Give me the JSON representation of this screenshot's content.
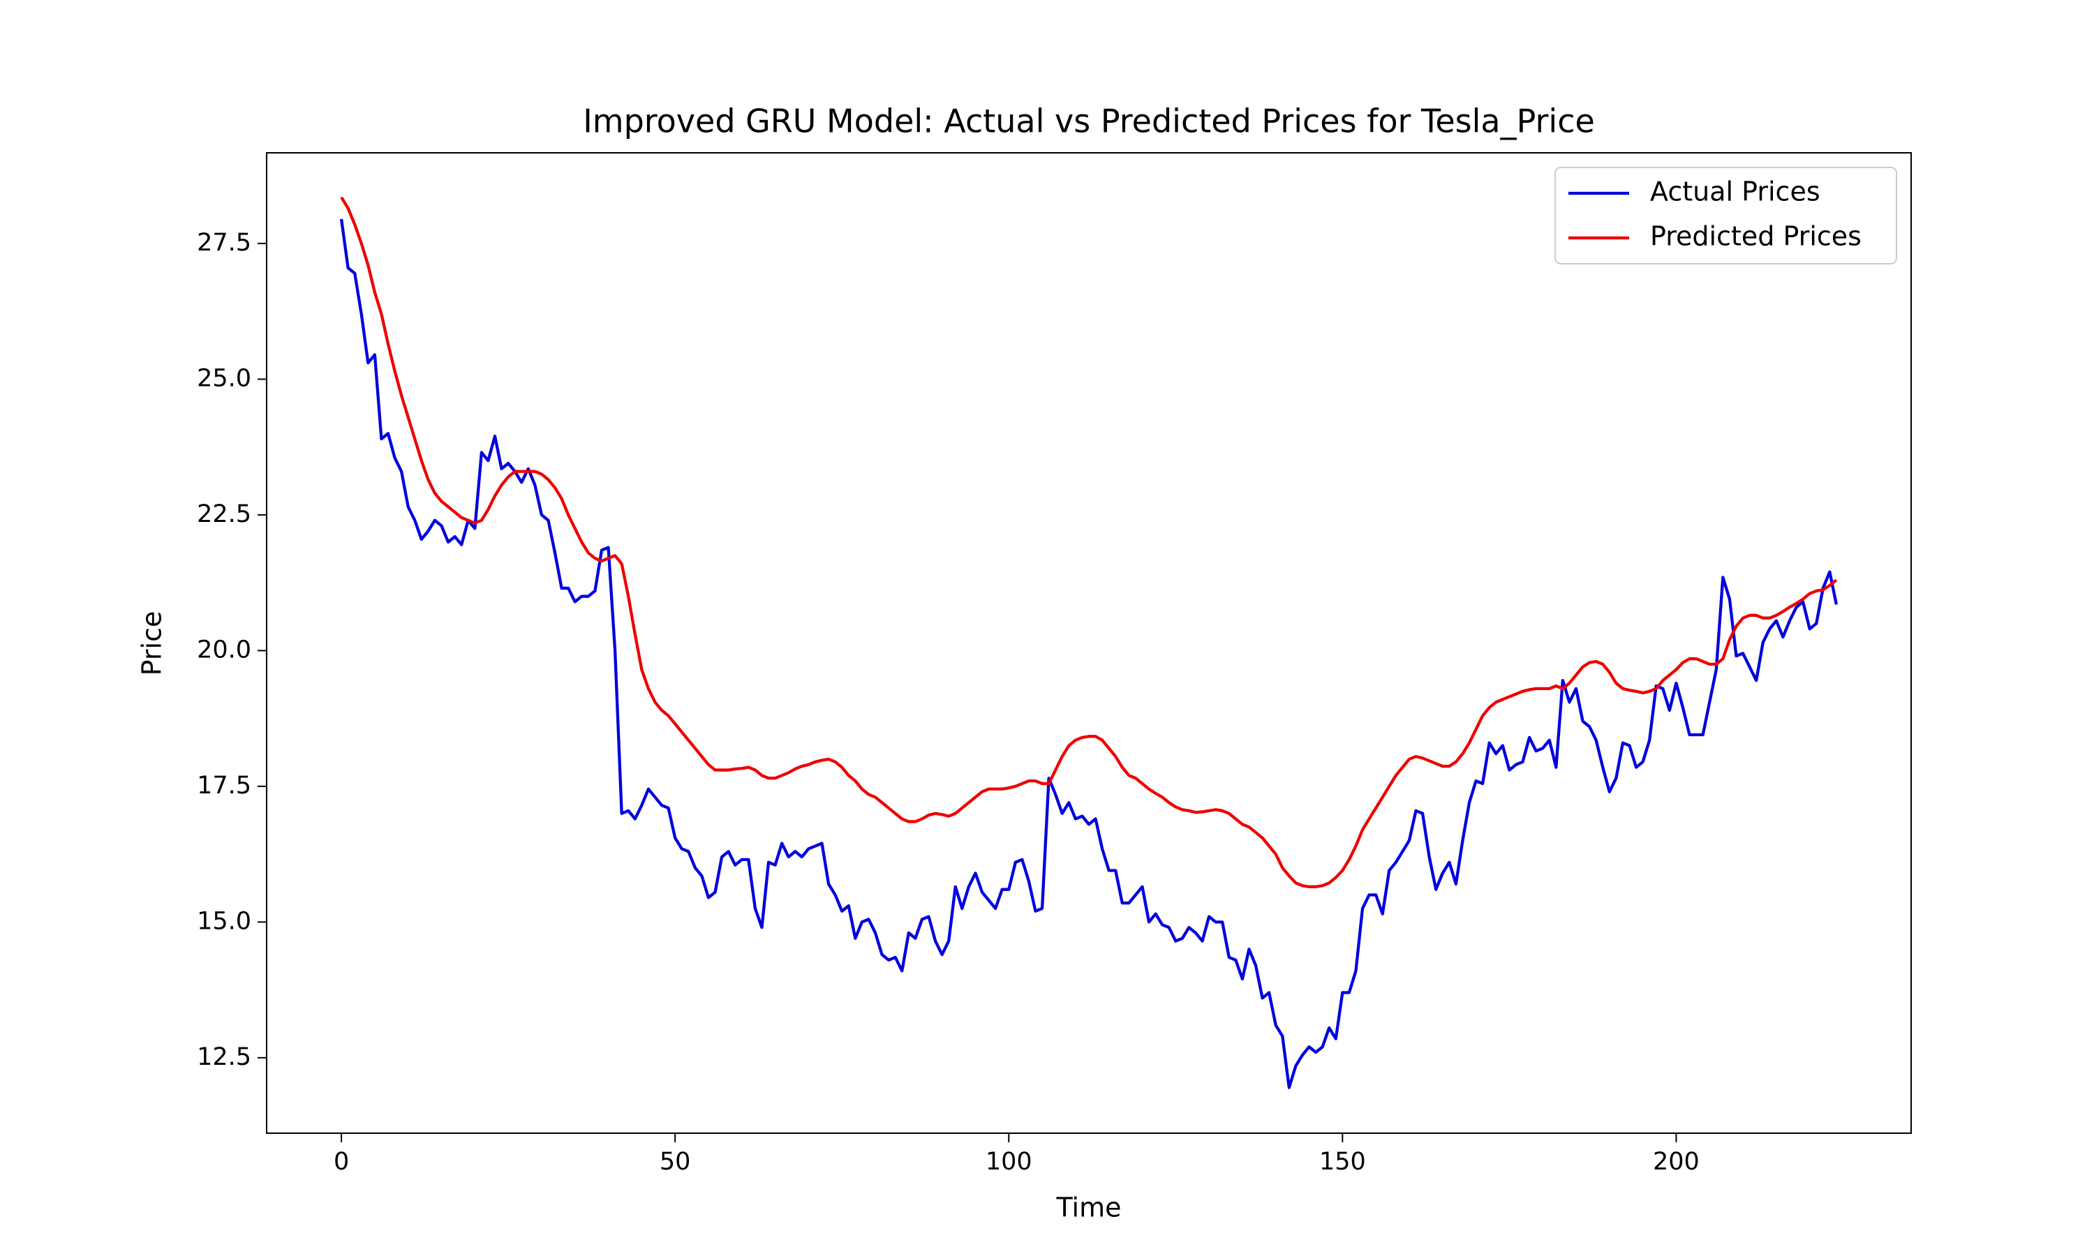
{
  "chart_data": {
    "type": "line",
    "title": "Improved GRU Model: Actual vs Predicted Prices for Tesla_Price",
    "x_label": "Time",
    "y_label": "Price",
    "x": [
      0,
      1,
      2,
      3,
      4,
      5,
      6,
      7,
      8,
      9,
      10,
      11,
      12,
      13,
      14,
      15,
      16,
      17,
      18,
      19,
      20,
      21,
      22,
      23,
      24,
      25,
      26,
      27,
      28,
      29,
      30,
      31,
      32,
      33,
      34,
      35,
      36,
      37,
      38,
      39,
      40,
      41,
      42,
      43,
      44,
      45,
      46,
      47,
      48,
      49,
      50,
      51,
      52,
      53,
      54,
      55,
      56,
      57,
      58,
      59,
      60,
      61,
      62,
      63,
      64,
      65,
      66,
      67,
      68,
      69,
      70,
      71,
      72,
      73,
      74,
      75,
      76,
      77,
      78,
      79,
      80,
      81,
      82,
      83,
      84,
      85,
      86,
      87,
      88,
      89,
      90,
      91,
      92,
      93,
      94,
      95,
      96,
      97,
      98,
      99,
      100,
      101,
      102,
      103,
      104,
      105,
      106,
      107,
      108,
      109,
      110,
      111,
      112,
      113,
      114,
      115,
      116,
      117,
      118,
      119,
      120,
      121,
      122,
      123,
      124,
      125,
      126,
      127,
      128,
      129,
      130,
      131,
      132,
      133,
      134,
      135,
      136,
      137,
      138,
      139,
      140,
      141,
      142,
      143,
      144,
      145,
      146,
      147,
      148,
      149,
      150,
      151,
      152,
      153,
      154,
      155,
      156,
      157,
      158,
      159,
      160,
      161,
      162,
      163,
      164,
      165,
      166,
      167,
      168,
      169,
      170,
      171,
      172,
      173,
      174,
      175,
      176,
      177,
      178,
      179,
      180,
      181,
      182,
      183,
      184,
      185,
      186,
      187,
      188,
      189,
      190,
      191,
      192,
      193,
      194,
      195,
      196,
      197,
      198,
      199,
      200,
      201,
      202,
      203,
      204,
      205,
      206,
      207,
      208,
      209,
      210,
      211,
      212,
      213,
      214,
      215,
      216,
      217,
      218,
      219,
      220,
      221,
      222,
      223,
      224
    ],
    "series": [
      {
        "name": "Actual Prices",
        "color": "#0000dd",
        "values": [
          27.95,
          27.05,
          26.95,
          26.2,
          25.3,
          25.45,
          23.9,
          24.0,
          23.55,
          23.3,
          22.65,
          22.4,
          22.05,
          22.2,
          22.4,
          22.3,
          22.0,
          22.1,
          21.95,
          22.4,
          22.25,
          23.65,
          23.5,
          23.95,
          23.35,
          23.45,
          23.3,
          23.1,
          23.35,
          23.05,
          22.5,
          22.4,
          21.8,
          21.15,
          21.15,
          20.9,
          21.0,
          21.0,
          21.1,
          21.85,
          21.9,
          20.0,
          17.0,
          17.05,
          16.9,
          17.15,
          17.45,
          17.3,
          17.15,
          17.1,
          16.55,
          16.35,
          16.3,
          16.0,
          15.85,
          15.45,
          15.55,
          16.2,
          16.3,
          16.05,
          16.15,
          16.15,
          15.25,
          14.9,
          16.1,
          16.05,
          16.45,
          16.2,
          16.3,
          16.2,
          16.35,
          16.4,
          16.45,
          15.7,
          15.5,
          15.2,
          15.3,
          14.7,
          15.0,
          15.05,
          14.8,
          14.4,
          14.3,
          14.35,
          14.1,
          14.8,
          14.7,
          15.05,
          15.1,
          14.65,
          14.4,
          14.65,
          15.65,
          15.25,
          15.65,
          15.9,
          15.55,
          15.4,
          15.25,
          15.6,
          15.6,
          16.1,
          16.15,
          15.75,
          15.2,
          15.25,
          17.65,
          17.35,
          17.0,
          17.2,
          16.9,
          16.95,
          16.8,
          16.9,
          16.35,
          15.95,
          15.95,
          15.35,
          15.35,
          15.5,
          15.65,
          15.0,
          15.15,
          14.95,
          14.9,
          14.65,
          14.7,
          14.9,
          14.8,
          14.65,
          15.1,
          15.0,
          15.0,
          14.35,
          14.3,
          13.95,
          14.5,
          14.2,
          13.6,
          13.7,
          13.1,
          12.9,
          11.95,
          12.35,
          12.55,
          12.7,
          12.6,
          12.7,
          13.05,
          12.85,
          13.7,
          13.7,
          14.1,
          15.25,
          15.5,
          15.5,
          15.15,
          15.95,
          16.1,
          16.3,
          16.5,
          17.05,
          17.0,
          16.2,
          15.6,
          15.9,
          16.1,
          15.7,
          16.5,
          17.2,
          17.6,
          17.55,
          18.3,
          18.1,
          18.25,
          17.8,
          17.9,
          17.95,
          18.4,
          18.15,
          18.2,
          18.35,
          17.85,
          19.45,
          19.05,
          19.3,
          18.7,
          18.6,
          18.35,
          17.85,
          17.4,
          17.65,
          18.3,
          18.25,
          17.85,
          17.95,
          18.35,
          19.35,
          19.3,
          18.9,
          19.4,
          18.95,
          18.45,
          18.45,
          18.45,
          19.05,
          19.65,
          21.35,
          20.95,
          19.9,
          19.95,
          19.7,
          19.45,
          20.15,
          20.4,
          20.55,
          20.25,
          20.55,
          20.8,
          20.9,
          20.4,
          20.5,
          21.15,
          21.45,
          20.85
        ]
      },
      {
        "name": "Predicted Prices",
        "color": "#ee0000",
        "values": [
          28.35,
          28.15,
          27.85,
          27.5,
          27.1,
          26.6,
          26.2,
          25.65,
          25.15,
          24.7,
          24.3,
          23.9,
          23.5,
          23.15,
          22.9,
          22.75,
          22.65,
          22.55,
          22.45,
          22.4,
          22.35,
          22.4,
          22.6,
          22.85,
          23.05,
          23.2,
          23.3,
          23.3,
          23.3,
          23.3,
          23.25,
          23.15,
          23.0,
          22.8,
          22.5,
          22.25,
          22.0,
          21.8,
          21.7,
          21.65,
          21.7,
          21.75,
          21.6,
          21.0,
          20.3,
          19.65,
          19.3,
          19.05,
          18.9,
          18.8,
          18.65,
          18.5,
          18.35,
          18.2,
          18.05,
          17.9,
          17.8,
          17.8,
          17.8,
          17.82,
          17.83,
          17.85,
          17.8,
          17.7,
          17.65,
          17.65,
          17.7,
          17.75,
          17.82,
          17.87,
          17.9,
          17.95,
          17.98,
          18.0,
          17.95,
          17.85,
          17.7,
          17.6,
          17.45,
          17.35,
          17.3,
          17.2,
          17.1,
          17.0,
          16.9,
          16.85,
          16.85,
          16.9,
          16.97,
          17.0,
          16.98,
          16.95,
          17.0,
          17.1,
          17.2,
          17.3,
          17.4,
          17.45,
          17.45,
          17.45,
          17.47,
          17.5,
          17.55,
          17.6,
          17.6,
          17.55,
          17.55,
          17.8,
          18.05,
          18.25,
          18.35,
          18.4,
          18.42,
          18.42,
          18.35,
          18.2,
          18.05,
          17.85,
          17.7,
          17.65,
          17.55,
          17.45,
          17.37,
          17.3,
          17.2,
          17.12,
          17.07,
          17.05,
          17.02,
          17.03,
          17.05,
          17.07,
          17.05,
          17.0,
          16.9,
          16.8,
          16.75,
          16.65,
          16.55,
          16.4,
          16.25,
          16.0,
          15.85,
          15.72,
          15.67,
          15.65,
          15.65,
          15.67,
          15.72,
          15.82,
          15.95,
          16.15,
          16.4,
          16.7,
          16.9,
          17.1,
          17.3,
          17.5,
          17.7,
          17.85,
          18.0,
          18.05,
          18.02,
          17.97,
          17.92,
          17.87,
          17.87,
          17.95,
          18.1,
          18.3,
          18.55,
          18.8,
          18.95,
          19.05,
          19.1,
          19.15,
          19.2,
          19.25,
          19.28,
          19.3,
          19.3,
          19.3,
          19.35,
          19.3,
          19.4,
          19.55,
          19.7,
          19.78,
          19.8,
          19.75,
          19.6,
          19.4,
          19.3,
          19.27,
          19.25,
          19.22,
          19.25,
          19.3,
          19.45,
          19.55,
          19.65,
          19.78,
          19.85,
          19.85,
          19.8,
          19.75,
          19.75,
          19.85,
          20.2,
          20.45,
          20.6,
          20.65,
          20.65,
          20.6,
          20.6,
          20.65,
          20.72,
          20.8,
          20.87,
          20.95,
          21.05,
          21.1,
          21.12,
          21.2,
          21.3
        ]
      }
    ],
    "xlim": [
      -11.2,
      235.2
    ],
    "ylim": [
      11.11,
      29.17
    ],
    "xticks": [
      0,
      50,
      100,
      150,
      200
    ],
    "yticks": [
      12.5,
      {
        "value": 15,
        "label": "15.0"
      },
      17.5,
      {
        "value": 20,
        "label": "20.0"
      },
      22.5,
      {
        "value": 25,
        "label": "25.0"
      },
      27.5
    ],
    "grid": false,
    "legend": "upper right"
  }
}
